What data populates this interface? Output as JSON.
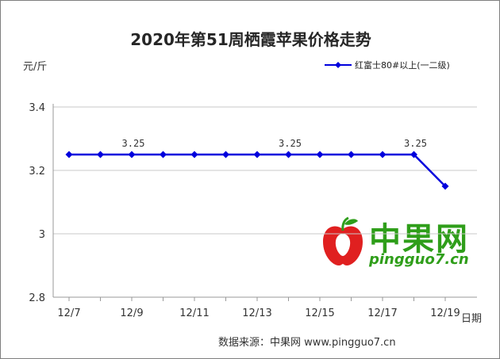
{
  "chart_data": {
    "type": "line",
    "title": "2020年第51周栖霞苹果价格走势",
    "ylabel": "元/斤",
    "xlabel": "日期",
    "x": [
      "12/7",
      "12/8",
      "12/9",
      "12/10",
      "12/11",
      "12/12",
      "12/13",
      "12/14",
      "12/15",
      "12/16",
      "12/17",
      "12/18",
      "12/19"
    ],
    "x_tick_labels": [
      "12/7",
      "12/9",
      "12/11",
      "12/13",
      "12/15",
      "12/17",
      "12/19"
    ],
    "ylim": [
      2.8,
      3.4
    ],
    "y_ticks": [
      2.8,
      3,
      3.2,
      3.4
    ],
    "y_tick_labels": [
      "2.8",
      "3",
      "3.2",
      "3.4"
    ],
    "grid": "horizontal",
    "legend_position": "top-right",
    "series": [
      {
        "name": "红富士80#以上(一二级)",
        "color": "#0000dd",
        "values": [
          3.25,
          3.25,
          3.25,
          3.25,
          3.25,
          3.25,
          3.25,
          3.25,
          3.25,
          3.25,
          3.25,
          3.25,
          3.15
        ]
      }
    ],
    "data_labels": [
      {
        "index": 2,
        "text": "3.25"
      },
      {
        "index": 7,
        "text": "3.25"
      },
      {
        "index": 11,
        "text": "3.25"
      }
    ]
  },
  "source": "数据来源：中果网 www.pingguo7.cn",
  "watermark": {
    "brand": "中果网",
    "url": "pingguo7.cn"
  },
  "colors": {
    "line": "#0000dd",
    "axis": "#999999",
    "grid": "#c8c8c8",
    "watermark_green": "#2f9e1a",
    "watermark_red": "#e02020"
  }
}
